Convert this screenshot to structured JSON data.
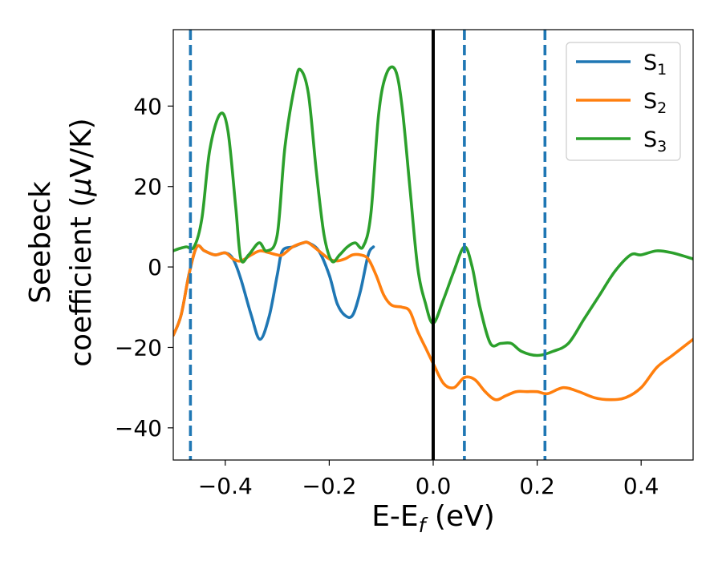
{
  "chart_data": {
    "type": "line",
    "xlabel": {
      "main": "E-E",
      "sub": "f",
      "tail": " (eV)"
    },
    "ylabel": {
      "line1": "Seebeck",
      "line2_prefix": "coefficient  (",
      "mu": "μ",
      "line2_suffix": "V/K)"
    },
    "xlim": [
      -0.5,
      0.5
    ],
    "ylim": [
      -48,
      59
    ],
    "xticks": [
      -0.4,
      -0.2,
      0.0,
      0.2,
      0.4
    ],
    "xtick_labels": [
      "−0.4",
      "−0.2",
      "0.0",
      "0.2",
      "0.4"
    ],
    "yticks": [
      -40,
      -20,
      0,
      20,
      40
    ],
    "ytick_labels": [
      "−40",
      "−20",
      "0",
      "20",
      "40"
    ],
    "legend_position": "top-right",
    "grid": false,
    "vertical_lines": [
      {
        "x": -0.467,
        "style": "dashed",
        "color": "#1f77b4"
      },
      {
        "x": 0.0,
        "style": "solid",
        "color": "#000000"
      },
      {
        "x": 0.06,
        "style": "dashed",
        "color": "#1f77b4"
      },
      {
        "x": 0.215,
        "style": "dashed",
        "color": "#1f77b4"
      }
    ],
    "series": [
      {
        "name": "S",
        "subscript": "1",
        "color": "#1f77b4",
        "x": [
          -0.5,
          -0.485,
          -0.47,
          -0.455,
          -0.44,
          -0.42,
          -0.4,
          -0.385,
          -0.37,
          -0.35,
          -0.333,
          -0.315,
          -0.3,
          -0.29,
          -0.27,
          -0.25,
          -0.24,
          -0.22,
          -0.2,
          -0.185,
          -0.17,
          -0.155,
          -0.14,
          -0.125,
          -0.115
        ],
        "y": [
          -17,
          -12,
          -2,
          5,
          4,
          3,
          3.5,
          2,
          -3,
          -12,
          -18,
          -12,
          -2,
          4,
          5,
          6,
          6,
          4,
          -2,
          -9,
          -12,
          -12,
          -6,
          3,
          5
        ]
      },
      {
        "name": "S",
        "subscript": "2",
        "color": "#ff7f0e",
        "x": [
          -0.5,
          -0.485,
          -0.47,
          -0.455,
          -0.44,
          -0.42,
          -0.4,
          -0.385,
          -0.37,
          -0.35,
          -0.333,
          -0.315,
          -0.3,
          -0.29,
          -0.27,
          -0.25,
          -0.24,
          -0.22,
          -0.2,
          -0.185,
          -0.17,
          -0.155,
          -0.14,
          -0.125,
          -0.11,
          -0.095,
          -0.08,
          -0.06,
          -0.045,
          -0.03,
          -0.015,
          0.0,
          0.02,
          0.04,
          0.06,
          0.08,
          0.1,
          0.12,
          0.14,
          0.16,
          0.18,
          0.2,
          0.22,
          0.25,
          0.28,
          0.31,
          0.34,
          0.37,
          0.4,
          0.43,
          0.46,
          0.5
        ],
        "y": [
          -17,
          -12,
          -2,
          5,
          4,
          3,
          3.5,
          2,
          1.5,
          3,
          4,
          3.5,
          3,
          3,
          5,
          6,
          6,
          4,
          2,
          1.5,
          2,
          3,
          3,
          2,
          -2,
          -7,
          -9.5,
          -10,
          -11,
          -16,
          -20,
          -24,
          -29,
          -30,
          -27.5,
          -28,
          -31,
          -33,
          -32,
          -31,
          -31,
          -31,
          -31.5,
          -30,
          -31,
          -32.5,
          -33,
          -32.5,
          -30,
          -25,
          -22,
          -18
        ]
      },
      {
        "name": "S",
        "subscript": "3",
        "color": "#2ca02c",
        "x": [
          -0.5,
          -0.49,
          -0.475,
          -0.46,
          -0.445,
          -0.43,
          -0.41,
          -0.395,
          -0.38,
          -0.37,
          -0.355,
          -0.335,
          -0.32,
          -0.3,
          -0.285,
          -0.265,
          -0.255,
          -0.24,
          -0.225,
          -0.21,
          -0.195,
          -0.18,
          -0.165,
          -0.15,
          -0.135,
          -0.12,
          -0.105,
          -0.09,
          -0.073,
          -0.06,
          -0.045,
          -0.03,
          -0.015,
          0.0,
          0.02,
          0.04,
          0.06,
          0.075,
          0.09,
          0.11,
          0.13,
          0.15,
          0.17,
          0.2,
          0.23,
          0.26,
          0.29,
          0.32,
          0.35,
          0.38,
          0.4,
          0.43,
          0.46,
          0.5
        ],
        "y": [
          4,
          4.5,
          5,
          5,
          12,
          29,
          38,
          34,
          15,
          2,
          3,
          6,
          4,
          8,
          30,
          46,
          49,
          43,
          24,
          8,
          1.5,
          3,
          5,
          6,
          5,
          13,
          38,
          48,
          49,
          40,
          20,
          0,
          -9,
          -14,
          -8,
          -1,
          5,
          0,
          -10,
          -19,
          -19,
          -19,
          -21,
          -22,
          -21,
          -19,
          -13,
          -7,
          -1,
          3,
          3,
          4,
          3.5,
          2
        ]
      }
    ]
  }
}
